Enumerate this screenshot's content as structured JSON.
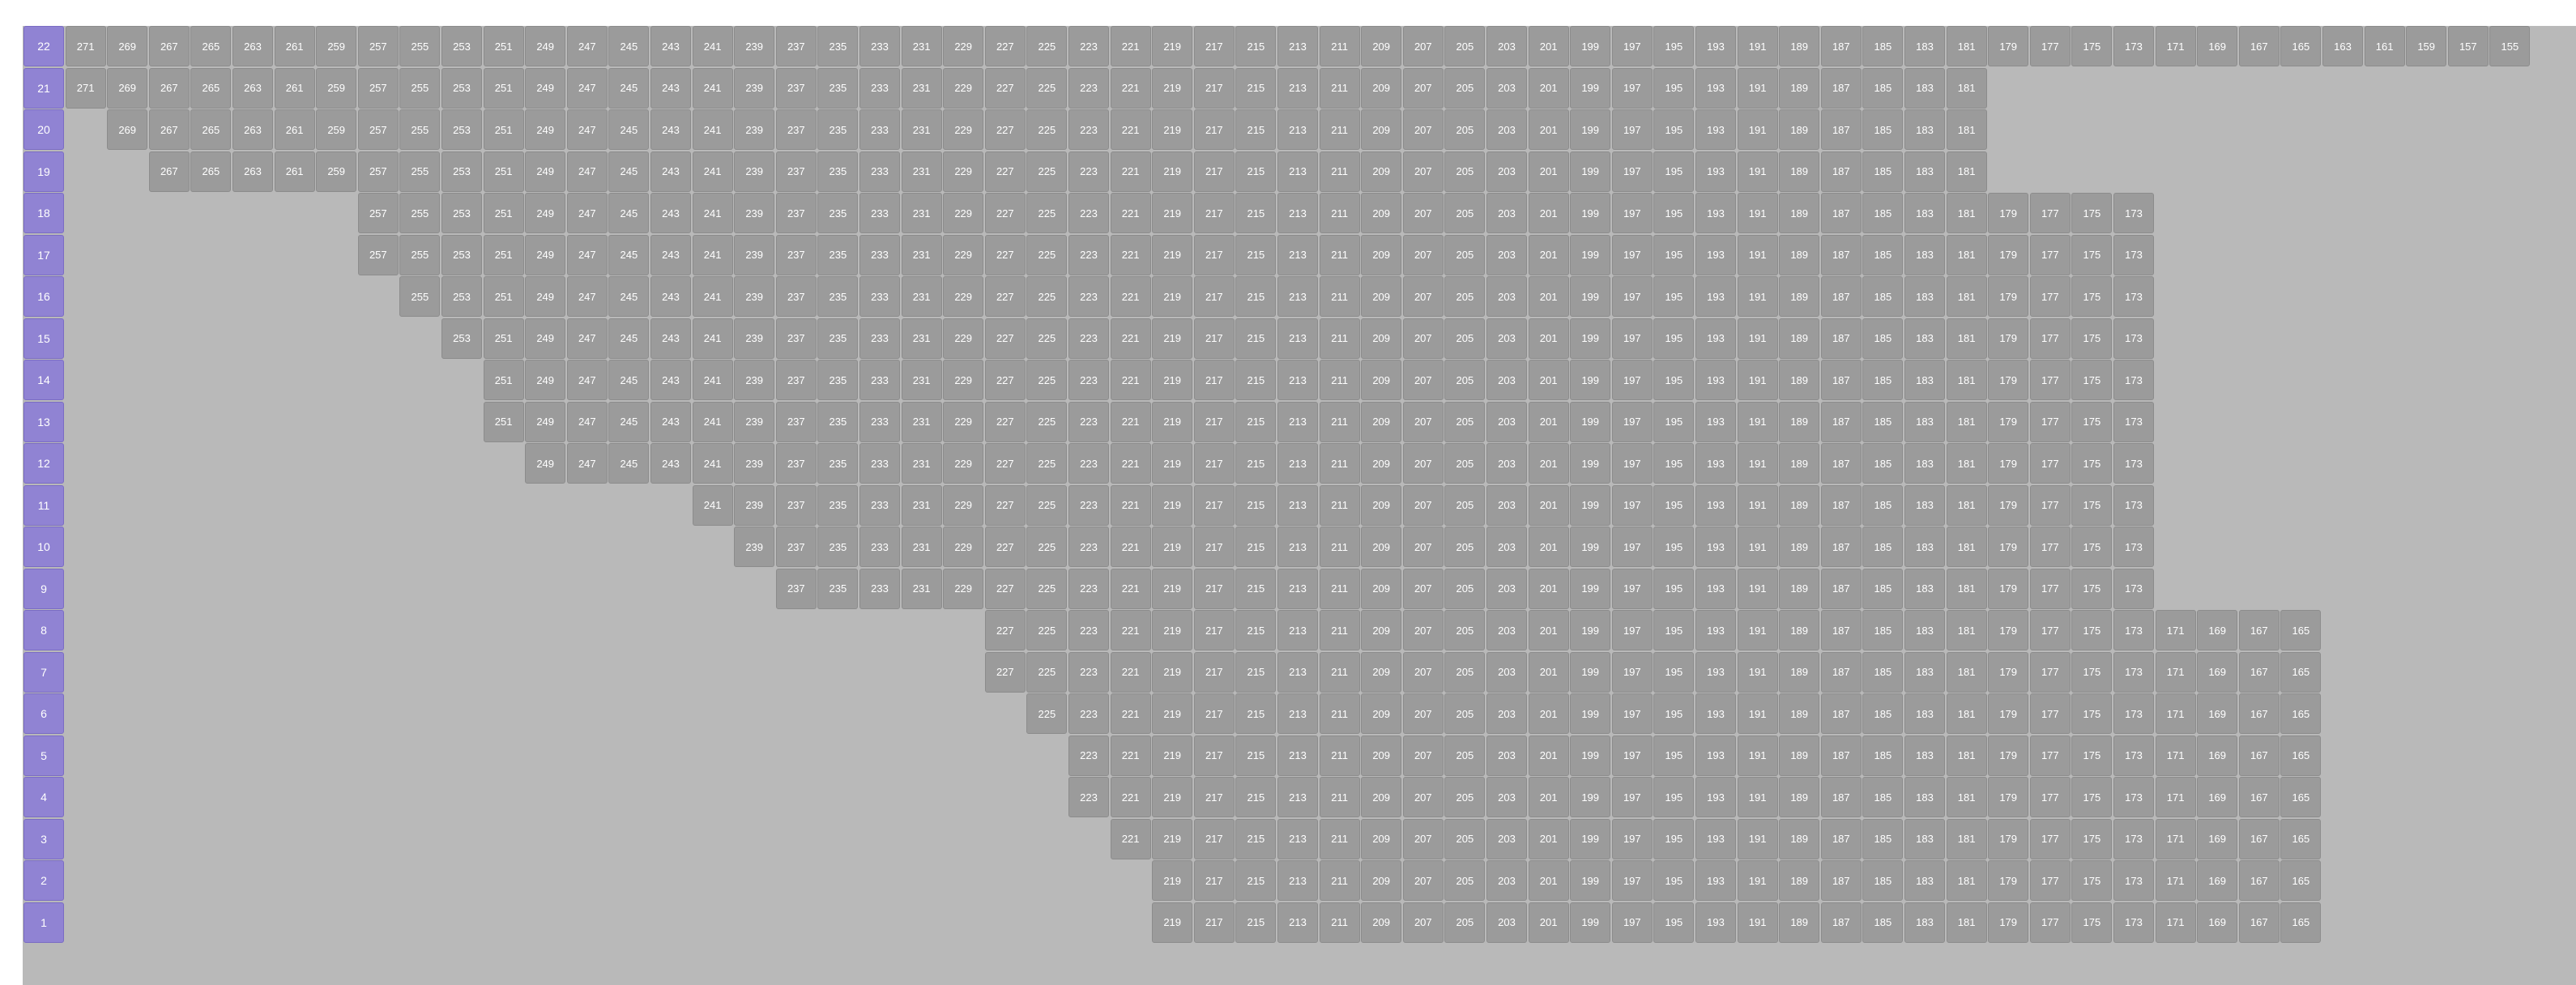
{
  "seat_map": {
    "colors": {
      "background": "#b9b9b9",
      "seat": "#9b9b9b",
      "row_label": "#9083d3",
      "text": "#ffffff"
    },
    "rows": [
      {
        "label": "22",
        "start": 271,
        "end": 155
      },
      {
        "label": "21",
        "start": 271,
        "end": 181
      },
      {
        "label": "20",
        "start": 269,
        "end": 181
      },
      {
        "label": "19",
        "start": 267,
        "end": 181
      },
      {
        "label": "18",
        "start": 257,
        "end": 173
      },
      {
        "label": "17",
        "start": 257,
        "end": 173
      },
      {
        "label": "16",
        "start": 255,
        "end": 173
      },
      {
        "label": "15",
        "start": 253,
        "end": 173
      },
      {
        "label": "14",
        "start": 251,
        "end": 173
      },
      {
        "label": "13",
        "start": 251,
        "end": 173
      },
      {
        "label": "12",
        "start": 249,
        "end": 173
      },
      {
        "label": "11",
        "start": 241,
        "end": 173
      },
      {
        "label": "10",
        "start": 239,
        "end": 173
      },
      {
        "label": "9",
        "start": 237,
        "end": 173
      },
      {
        "label": "8",
        "start": 227,
        "end": 165
      },
      {
        "label": "7",
        "start": 227,
        "end": 165
      },
      {
        "label": "6",
        "start": 225,
        "end": 165
      },
      {
        "label": "5",
        "start": 223,
        "end": 165
      },
      {
        "label": "4",
        "start": 223,
        "end": 165
      },
      {
        "label": "3",
        "start": 221,
        "end": 165
      },
      {
        "label": "2",
        "start": 219,
        "end": 165
      },
      {
        "label": "1",
        "start": 219,
        "end": 165
      }
    ]
  }
}
